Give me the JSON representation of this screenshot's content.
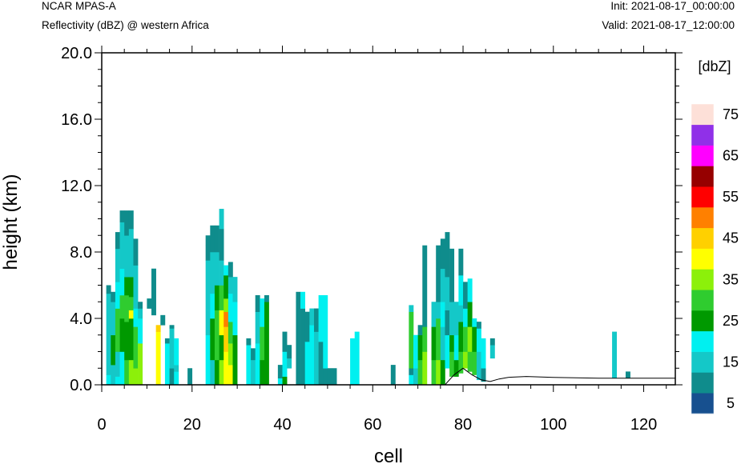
{
  "header": {
    "model": "NCAR MPAS-A",
    "field": "Reflectivity (dBZ) @ western Africa",
    "init": "Init: 2021-08-17_00:00:00",
    "valid": "Valid: 2021-08-17_12:00:00"
  },
  "chart_data": {
    "type": "heatmap",
    "xlabel": "cell",
    "ylabel": "height (km)",
    "xlim": [
      0,
      127
    ],
    "ylim": [
      0,
      20
    ],
    "xticks": [
      0,
      20,
      40,
      60,
      80,
      100,
      120
    ],
    "yticks": [
      0.0,
      4.0,
      8.0,
      12.0,
      16.0,
      20.0
    ],
    "ytick_labels": [
      "0.0",
      "4.0",
      "8.0",
      "12.0",
      "16.0",
      "20.0"
    ],
    "colorbar": {
      "label": "[dbZ]",
      "levels": [
        5,
        10,
        15,
        20,
        25,
        30,
        35,
        40,
        45,
        50,
        55,
        60,
        65,
        70,
        75
      ],
      "tick_labels": [
        "5",
        "15",
        "25",
        "35",
        "45",
        "55",
        "65",
        "75"
      ],
      "colors": [
        "#17508f",
        "#0f8c8c",
        "#14c8c8",
        "#00f0f0",
        "#009900",
        "#2fcc2f",
        "#8cf00a",
        "#ffff00",
        "#ffd000",
        "#ff8000",
        "#ff0000",
        "#960000",
        "#ff00ff",
        "#9030e8",
        "#fde0d8"
      ]
    },
    "terrain_km": [
      [
        0,
        0
      ],
      [
        76,
        0
      ],
      [
        78,
        0.6
      ],
      [
        80,
        1.0
      ],
      [
        82,
        0.6
      ],
      [
        84,
        0.3
      ],
      [
        86,
        0.2
      ],
      [
        88,
        0.35
      ],
      [
        90,
        0.45
      ],
      [
        94,
        0.5
      ],
      [
        100,
        0.45
      ],
      [
        110,
        0.4
      ],
      [
        127,
        0.4
      ]
    ],
    "columns": [
      {
        "x": 1,
        "bins": [
          [
            0,
            0.6,
            3
          ],
          [
            0.6,
            5.5,
            2
          ],
          [
            5.5,
            6,
            1
          ]
        ]
      },
      {
        "x": 2,
        "bins": [
          [
            0,
            1.2,
            2
          ],
          [
            1.2,
            3,
            4
          ],
          [
            3,
            5,
            2
          ],
          [
            5,
            5.6,
            1
          ]
        ]
      },
      {
        "x": 3,
        "bins": [
          [
            0,
            0.5,
            3
          ],
          [
            0.5,
            2,
            2
          ],
          [
            2,
            4.6,
            5
          ],
          [
            4.6,
            6.2,
            3
          ],
          [
            6.2,
            8.2,
            2
          ],
          [
            8.2,
            9.2,
            1
          ]
        ]
      },
      {
        "x": 4,
        "bins": [
          [
            0,
            2,
            3
          ],
          [
            2,
            4,
            4
          ],
          [
            4,
            5.4,
            5
          ],
          [
            5.4,
            7,
            3
          ],
          [
            7,
            9.8,
            2
          ],
          [
            9.8,
            10.5,
            1
          ]
        ]
      },
      {
        "x": 5,
        "bins": [
          [
            0,
            1.5,
            5
          ],
          [
            1.5,
            3.8,
            4
          ],
          [
            3.8,
            5.4,
            5
          ],
          [
            5.4,
            6.5,
            4
          ],
          [
            6.5,
            9,
            2
          ],
          [
            9,
            10.5,
            1
          ]
        ]
      },
      {
        "x": 6,
        "bins": [
          [
            0,
            1.5,
            6
          ],
          [
            1.5,
            4,
            4
          ],
          [
            4,
            4.5,
            7
          ],
          [
            4.5,
            5.3,
            5
          ],
          [
            5.3,
            6.5,
            4
          ],
          [
            6.5,
            9.4,
            2
          ],
          [
            9.4,
            10.5,
            1
          ]
        ]
      },
      {
        "x": 7,
        "bins": [
          [
            0,
            1,
            6
          ],
          [
            1,
            3.5,
            5
          ],
          [
            3.5,
            4.6,
            3
          ],
          [
            4.6,
            7.2,
            2
          ],
          [
            7.2,
            8.8,
            1
          ]
        ]
      },
      {
        "x": 8,
        "bins": [
          [
            0,
            2.5,
            6
          ],
          [
            2.5,
            4,
            3
          ],
          [
            4,
            4.6,
            2
          ],
          [
            4.6,
            5,
            1
          ]
        ]
      },
      {
        "x": 10,
        "bins": [
          [
            4.6,
            5.2,
            1
          ]
        ]
      },
      {
        "x": 11,
        "bins": [
          [
            4.2,
            7,
            1
          ]
        ]
      },
      {
        "x": 12,
        "bins": [
          [
            0,
            3.2,
            7
          ],
          [
            3.2,
            3.6,
            8
          ]
        ]
      },
      {
        "x": 13,
        "bins": [
          [
            3.6,
            4.2,
            1
          ]
        ]
      },
      {
        "x": 14,
        "bins": [
          [
            0,
            2.5,
            3
          ],
          [
            2.5,
            2.8,
            1
          ]
        ]
      },
      {
        "x": 15,
        "bins": [
          [
            0,
            1,
            1
          ],
          [
            1,
            3.4,
            2
          ],
          [
            3.4,
            3.6,
            1
          ]
        ]
      },
      {
        "x": 16,
        "bins": [
          [
            0,
            0.8,
            3
          ],
          [
            0.8,
            1.2,
            2
          ],
          [
            1.2,
            2.8,
            3
          ]
        ]
      },
      {
        "x": 19,
        "bins": [
          [
            0,
            1,
            1
          ]
        ]
      },
      {
        "x": 23,
        "bins": [
          [
            0,
            3,
            3
          ],
          [
            3,
            4.5,
            2
          ],
          [
            4.5,
            7.5,
            2
          ],
          [
            7.5,
            8.4,
            1
          ],
          [
            8.4,
            9,
            1
          ]
        ]
      },
      {
        "x": 24,
        "bins": [
          [
            0,
            1.5,
            2
          ],
          [
            1.5,
            4,
            4
          ],
          [
            4,
            5.5,
            3
          ],
          [
            5.5,
            8,
            2
          ],
          [
            8,
            9.6,
            1
          ]
        ]
      },
      {
        "x": 25,
        "bins": [
          [
            0,
            1.5,
            4
          ],
          [
            1.5,
            4.5,
            5
          ],
          [
            4.5,
            6,
            4
          ],
          [
            6,
            8,
            2
          ],
          [
            8,
            9.6,
            1
          ]
        ]
      },
      {
        "x": 26,
        "bins": [
          [
            0,
            1.5,
            6
          ],
          [
            1.5,
            3,
            4
          ],
          [
            3,
            4.5,
            7
          ],
          [
            4.5,
            6,
            5
          ],
          [
            6,
            7.5,
            2
          ],
          [
            7.5,
            9.4,
            1
          ],
          [
            9.4,
            10.6,
            2
          ]
        ]
      },
      {
        "x": 27,
        "bins": [
          [
            0,
            2,
            7
          ],
          [
            2,
            3.5,
            8
          ],
          [
            3.5,
            4.4,
            9
          ],
          [
            4.4,
            5.2,
            6
          ],
          [
            5.2,
            6.6,
            4
          ],
          [
            6.6,
            7.2,
            3
          ]
        ]
      },
      {
        "x": 28,
        "bins": [
          [
            0,
            1.2,
            7
          ],
          [
            1.2,
            2.5,
            6
          ],
          [
            2.5,
            3.8,
            5
          ],
          [
            3.8,
            5.5,
            3
          ],
          [
            5.5,
            6.5,
            2
          ],
          [
            6.5,
            7.4,
            1
          ]
        ]
      },
      {
        "x": 29,
        "bins": [
          [
            0,
            3,
            4
          ],
          [
            3,
            5,
            3
          ],
          [
            5,
            6.5,
            2
          ]
        ]
      },
      {
        "x": 32,
        "bins": [
          [
            0,
            2.4,
            3
          ],
          [
            2.4,
            2.8,
            1
          ]
        ]
      },
      {
        "x": 33,
        "bins": [
          [
            0,
            1.5,
            2
          ],
          [
            1.5,
            2.2,
            1
          ]
        ]
      },
      {
        "x": 34,
        "bins": [
          [
            0,
            2.5,
            3
          ],
          [
            2.5,
            4.4,
            2
          ],
          [
            4.4,
            5.4,
            1
          ]
        ]
      },
      {
        "x": 35,
        "bins": [
          [
            0,
            1.5,
            4
          ],
          [
            1.5,
            3.5,
            5
          ],
          [
            3.5,
            5.2,
            3
          ]
        ]
      },
      {
        "x": 36,
        "bins": [
          [
            0,
            5,
            4
          ],
          [
            5,
            5.4,
            1
          ]
        ]
      },
      {
        "x": 39,
        "bins": [
          [
            0,
            0.4,
            3
          ],
          [
            0.4,
            1.2,
            1
          ]
        ]
      },
      {
        "x": 40,
        "bins": [
          [
            0,
            0.5,
            4
          ],
          [
            0.5,
            2,
            3
          ],
          [
            2,
            3.2,
            1
          ]
        ]
      },
      {
        "x": 41,
        "bins": [
          [
            1,
            1.6,
            2
          ],
          [
            1.6,
            2.4,
            1
          ]
        ]
      },
      {
        "x": 43,
        "bins": [
          [
            0,
            5,
            1
          ],
          [
            5,
            5.6,
            1
          ]
        ]
      },
      {
        "x": 44,
        "bins": [
          [
            0,
            4.6,
            1
          ],
          [
            4.6,
            5.6,
            3
          ]
        ]
      },
      {
        "x": 45,
        "bins": [
          [
            0,
            2.6,
            3
          ],
          [
            2.6,
            4.4,
            1
          ]
        ]
      },
      {
        "x": 46,
        "bins": [
          [
            0,
            3.6,
            3
          ],
          [
            3.6,
            4.6,
            2
          ]
        ]
      },
      {
        "x": 47,
        "bins": [
          [
            0,
            3.2,
            2
          ],
          [
            3.2,
            4.6,
            1
          ]
        ]
      },
      {
        "x": 48,
        "bins": [
          [
            0,
            2.6,
            1
          ],
          [
            2.6,
            5.4,
            3
          ]
        ]
      },
      {
        "x": 49,
        "bins": [
          [
            0,
            1,
            1
          ],
          [
            1,
            5.4,
            3
          ]
        ]
      },
      {
        "x": 50,
        "bins": [
          [
            0,
            1,
            1
          ]
        ]
      },
      {
        "x": 51,
        "bins": [
          [
            0,
            1,
            1
          ]
        ]
      },
      {
        "x": 55,
        "bins": [
          [
            0,
            2.8,
            3
          ]
        ]
      },
      {
        "x": 56,
        "bins": [
          [
            0,
            3.2,
            3
          ]
        ]
      },
      {
        "x": 64,
        "bins": [
          [
            0,
            1.2,
            1
          ]
        ]
      },
      {
        "x": 68,
        "bins": [
          [
            0,
            0.6,
            3
          ],
          [
            0.6,
            1,
            1
          ],
          [
            1,
            4.4,
            5
          ],
          [
            4.4,
            4.8,
            2
          ]
        ]
      },
      {
        "x": 69,
        "bins": [
          [
            0,
            1,
            2
          ],
          [
            1,
            3,
            3
          ]
        ]
      },
      {
        "x": 70,
        "bins": [
          [
            0,
            1.5,
            5
          ],
          [
            1.5,
            3,
            4
          ],
          [
            3,
            3.6,
            1
          ]
        ]
      },
      {
        "x": 71,
        "bins": [
          [
            0,
            2,
            6
          ],
          [
            2,
            3.5,
            5
          ],
          [
            3.5,
            8.4,
            1
          ]
        ]
      },
      {
        "x": 73,
        "bins": [
          [
            0,
            1.5,
            5
          ],
          [
            1.5,
            3.5,
            4
          ],
          [
            3.5,
            5,
            2
          ]
        ]
      },
      {
        "x": 74,
        "bins": [
          [
            0,
            1.5,
            6
          ],
          [
            1.5,
            4,
            5
          ],
          [
            4,
            5,
            2
          ],
          [
            5,
            7,
            1
          ],
          [
            7,
            8.4,
            1
          ]
        ]
      },
      {
        "x": 75,
        "bins": [
          [
            0,
            1.5,
            4
          ],
          [
            1.5,
            3.5,
            2
          ],
          [
            3.5,
            5,
            3
          ],
          [
            5,
            7,
            2
          ],
          [
            7,
            8.8,
            1
          ]
        ]
      },
      {
        "x": 76,
        "bins": [
          [
            1,
            3,
            3
          ],
          [
            3,
            4.5,
            1
          ],
          [
            4.5,
            6.5,
            2
          ],
          [
            6.5,
            9.2,
            1
          ]
        ]
      },
      {
        "x": 77,
        "bins": [
          [
            0.5,
            2,
            5
          ],
          [
            2,
            3,
            4
          ],
          [
            3,
            5,
            2
          ],
          [
            5,
            8.2,
            1
          ]
        ]
      },
      {
        "x": 78,
        "bins": [
          [
            0.5,
            1.5,
            4
          ],
          [
            1.5,
            3,
            3
          ],
          [
            3,
            5,
            2
          ]
        ]
      },
      {
        "x": 79,
        "bins": [
          [
            0.7,
            2,
            5
          ],
          [
            2,
            3.8,
            4
          ],
          [
            3.8,
            4.8,
            2
          ],
          [
            4.8,
            6.6,
            3
          ],
          [
            6.6,
            8.2,
            1
          ]
        ]
      },
      {
        "x": 80,
        "bins": [
          [
            1,
            2,
            6
          ],
          [
            2,
            3.5,
            5
          ],
          [
            3.5,
            4.6,
            3
          ],
          [
            4.6,
            6.2,
            1
          ]
        ]
      },
      {
        "x": 81,
        "bins": [
          [
            0.8,
            2,
            5
          ],
          [
            2,
            3.5,
            6
          ],
          [
            3.5,
            5,
            4
          ],
          [
            5,
            6.4,
            3
          ]
        ]
      },
      {
        "x": 82,
        "bins": [
          [
            0.6,
            2,
            5
          ],
          [
            2,
            3.5,
            4
          ],
          [
            3.5,
            4,
            3
          ]
        ]
      },
      {
        "x": 83,
        "bins": [
          [
            0.3,
            2,
            2
          ],
          [
            2,
            3.4,
            3
          ],
          [
            3.4,
            3.8,
            1
          ]
        ]
      },
      {
        "x": 84,
        "bins": [
          [
            0.2,
            1,
            1
          ],
          [
            1,
            2.8,
            3
          ]
        ]
      },
      {
        "x": 86,
        "bins": [
          [
            1.6,
            2.4,
            2
          ],
          [
            2.4,
            2.8,
            1
          ]
        ]
      },
      {
        "x": 113,
        "bins": [
          [
            0.4,
            3.2,
            2
          ]
        ]
      },
      {
        "x": 116,
        "bins": [
          [
            0.4,
            0.8,
            1
          ]
        ]
      }
    ]
  }
}
